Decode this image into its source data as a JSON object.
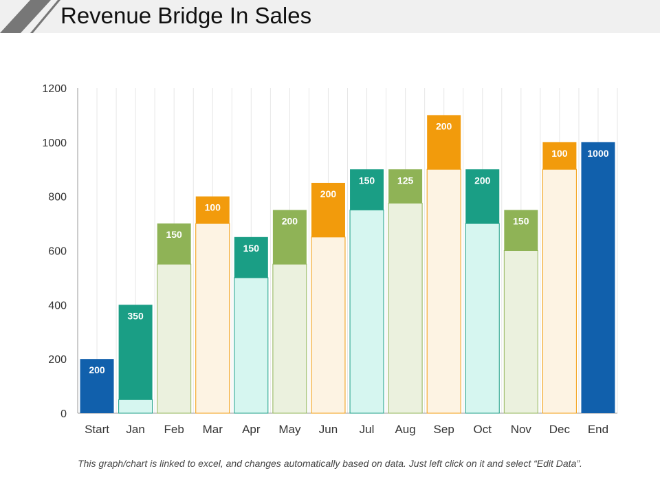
{
  "header": {
    "title": "Revenue Bridge In Sales"
  },
  "footnote": "This graph/chart is linked to excel, and changes automatically based on data. Just left click on it and select “Edit Data”.",
  "colors": {
    "blue": "#1160ac",
    "teal": "#1a9e85",
    "teal_light": "#d6f6f0",
    "green": "#8fb356",
    "green_light": "#ebf1de",
    "orange": "#f29b0c",
    "orange_light": "#fdf3e3"
  },
  "chart_data": {
    "type": "bar",
    "subtype": "waterfall",
    "categories": [
      "Start",
      "Jan",
      "Feb",
      "Mar",
      "Apr",
      "May",
      "Jun",
      "Jul",
      "Aug",
      "Sep",
      "Oct",
      "Nov",
      "Dec",
      "End"
    ],
    "base": [
      0,
      50,
      550,
      700,
      500,
      550,
      650,
      750,
      775,
      900,
      700,
      600,
      900,
      0
    ],
    "values": [
      200,
      350,
      150,
      100,
      150,
      200,
      200,
      150,
      125,
      200,
      200,
      150,
      100,
      1000
    ],
    "colors": [
      "blue",
      "teal",
      "green",
      "orange",
      "teal",
      "green",
      "orange",
      "teal",
      "green",
      "orange",
      "teal",
      "green",
      "orange",
      "blue"
    ],
    "ylim": [
      0,
      1200
    ],
    "yticks": [
      0,
      200,
      400,
      600,
      800,
      1000,
      1200
    ],
    "grid": "vertical",
    "legend": "none"
  }
}
